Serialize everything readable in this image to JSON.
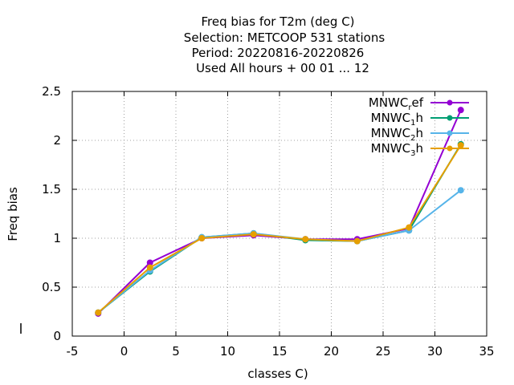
{
  "chart_data": {
    "type": "line",
    "title_lines": [
      "Freq bias  for T2m (deg C)",
      "Selection: METCOOP    531 stations",
      "Period: 20220816-20220826",
      "Used  All hours + 00 01 ... 12"
    ],
    "xlabel": "classes C)",
    "ylabel": "Freq bias",
    "xlim": [
      -5,
      35
    ],
    "ylim": [
      0,
      2.5
    ],
    "xticks": [
      "-5",
      "0",
      "5",
      "10",
      "15",
      "20",
      "25",
      "30",
      "35"
    ],
    "yticks": [
      "0",
      "0.5",
      "1",
      "1.5",
      "2",
      "2.5"
    ],
    "grid": true,
    "legend_placement": "top-right",
    "x": [
      -2.5,
      2.5,
      7.5,
      12.5,
      17.5,
      22.5,
      27.5,
      32.5
    ],
    "series": [
      {
        "name_main": "MNWC",
        "name_sub": "r",
        "name_rest": "ef",
        "color": "#9400d3",
        "values": [
          0.23,
          0.75,
          1.0,
          1.03,
          0.99,
          0.99,
          1.1,
          2.31
        ]
      },
      {
        "name_main": "MNWC",
        "name_sub": "1",
        "name_rest": "h",
        "color": "#009e73",
        "values": [
          0.24,
          0.66,
          1.01,
          1.05,
          0.98,
          0.97,
          1.08,
          1.96
        ]
      },
      {
        "name_main": "MNWC",
        "name_sub": "2",
        "name_rest": "h",
        "color": "#56b4e9",
        "values": [
          0.24,
          0.67,
          1.01,
          1.05,
          0.99,
          0.97,
          1.08,
          1.49
        ]
      },
      {
        "name_main": "MNWC",
        "name_sub": "3",
        "name_rest": "h",
        "color": "#e69f00",
        "values": [
          0.24,
          0.7,
          1.0,
          1.04,
          0.99,
          0.97,
          1.11,
          1.95
        ]
      }
    ]
  }
}
